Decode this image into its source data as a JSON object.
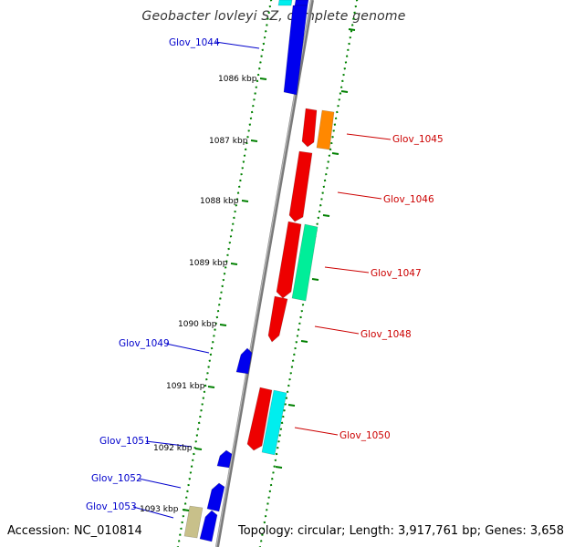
{
  "title": "Geobacter lovleyi SZ, complete genome",
  "footer": {
    "accession": "Accession: NC_010814",
    "summary": "Topology: circular; Length: 3,917,761 bp; Genes: 3,658"
  },
  "ruler_labels": [
    "1086 kbp",
    "1087 kbp",
    "1088 kbp",
    "1089 kbp",
    "1090 kbp",
    "1091 kbp",
    "1092 kbp",
    "1093 kbp"
  ],
  "genes_left": [
    {
      "label": "Glov_1044",
      "color": "#0000cc"
    },
    {
      "label": "Glov_1049",
      "color": "#0000cc"
    },
    {
      "label": "Glov_1051",
      "color": "#0000cc"
    },
    {
      "label": "Glov_1052",
      "color": "#0000cc"
    },
    {
      "label": "Glov_1053",
      "color": "#0000cc"
    }
  ],
  "genes_right": [
    {
      "label": "Glov_1045",
      "color": "#cc0000"
    },
    {
      "label": "Glov_1046",
      "color": "#cc0000"
    },
    {
      "label": "Glov_1047",
      "color": "#cc0000"
    },
    {
      "label": "Glov_1048",
      "color": "#cc0000"
    },
    {
      "label": "Glov_1050",
      "color": "#cc0000"
    }
  ],
  "feature_colors": {
    "blue": "#0000ee",
    "red": "#ee0000",
    "orange": "#ff8800",
    "green": "#00ee99",
    "cyan": "#00eeee",
    "khaki": "#c8c08a",
    "ruler": "#008000",
    "backbone": "#888888"
  }
}
